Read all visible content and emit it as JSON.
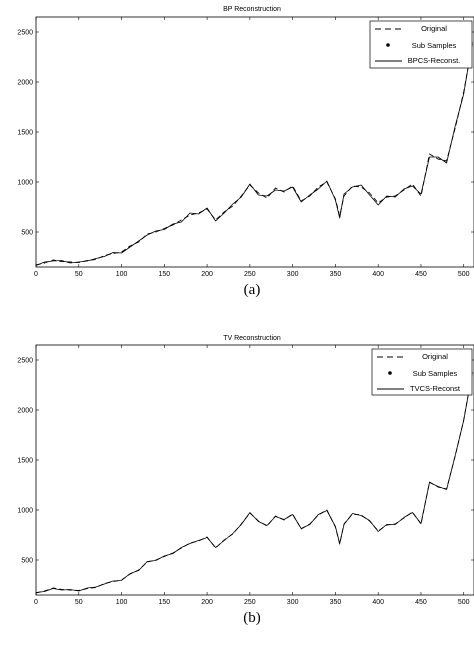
{
  "chart_data": [
    {
      "type": "line",
      "title": "BP Reconstruction",
      "caption": "(a)",
      "xlim": [
        0,
        512
      ],
      "ylim": [
        150,
        2650
      ],
      "xticks": [
        0,
        50,
        100,
        150,
        200,
        250,
        300,
        350,
        400,
        450,
        500
      ],
      "yticks": [
        500,
        1000,
        1500,
        2000,
        2500
      ],
      "legend_position": "top-right",
      "series": [
        {
          "name": "Original",
          "style": "dashed",
          "color": "#000000",
          "x": [
            0,
            10,
            20,
            30,
            40,
            50,
            60,
            70,
            80,
            90,
            100,
            110,
            120,
            130,
            140,
            150,
            160,
            170,
            180,
            190,
            200,
            210,
            220,
            230,
            240,
            250,
            260,
            270,
            280,
            290,
            300,
            310,
            320,
            330,
            340,
            350,
            355,
            360,
            370,
            380,
            390,
            400,
            410,
            420,
            430,
            440,
            450,
            460,
            470,
            480,
            490,
            500,
            510
          ],
          "y": [
            170,
            190,
            220,
            205,
            200,
            195,
            215,
            225,
            265,
            285,
            300,
            360,
            400,
            480,
            500,
            535,
            570,
            620,
            670,
            690,
            730,
            620,
            700,
            760,
            860,
            970,
            890,
            840,
            940,
            900,
            960,
            810,
            860,
            950,
            1000,
            830,
            660,
            860,
            960,
            950,
            890,
            790,
            850,
            860,
            920,
            980,
            860,
            1280,
            1230,
            1210,
            1540,
            1900,
            2380
          ]
        },
        {
          "name": "Sub Samples",
          "style": "dots",
          "color": "#000000",
          "x": [],
          "y": []
        },
        {
          "name": "BPCS-Reconst.",
          "style": "solid",
          "color": "#000000",
          "x": [
            0,
            10,
            20,
            30,
            40,
            50,
            60,
            70,
            80,
            90,
            100,
            110,
            120,
            130,
            140,
            150,
            160,
            170,
            180,
            190,
            200,
            210,
            220,
            230,
            240,
            250,
            260,
            270,
            280,
            290,
            300,
            310,
            320,
            330,
            340,
            350,
            355,
            360,
            370,
            380,
            390,
            400,
            410,
            420,
            430,
            440,
            450,
            460,
            470,
            480,
            490,
            500,
            510
          ],
          "y": [
            165,
            200,
            210,
            215,
            190,
            200,
            210,
            235,
            255,
            295,
            290,
            350,
            410,
            470,
            510,
            525,
            580,
            600,
            690,
            680,
            740,
            610,
            690,
            780,
            850,
            980,
            870,
            860,
            920,
            910,
            950,
            800,
            870,
            930,
            1010,
            820,
            640,
            880,
            950,
            970,
            870,
            770,
            860,
            850,
            930,
            960,
            880,
            1250,
            1250,
            1190,
            1560,
            1880,
            2400
          ]
        }
      ]
    },
    {
      "type": "line",
      "title": "TV Reconstruction",
      "caption": "(b)",
      "xlim": [
        0,
        512
      ],
      "ylim": [
        150,
        2650
      ],
      "xticks": [
        0,
        50,
        100,
        150,
        200,
        250,
        300,
        350,
        400,
        450,
        500
      ],
      "yticks": [
        500,
        1000,
        1500,
        2000,
        2500
      ],
      "legend_position": "top-right",
      "series": [
        {
          "name": "Original",
          "style": "dashed",
          "color": "#000000",
          "x": [
            0,
            10,
            20,
            30,
            40,
            50,
            60,
            70,
            80,
            90,
            100,
            110,
            120,
            130,
            140,
            150,
            160,
            170,
            180,
            190,
            200,
            210,
            220,
            230,
            240,
            250,
            260,
            270,
            280,
            290,
            300,
            310,
            320,
            330,
            340,
            350,
            355,
            360,
            370,
            380,
            390,
            400,
            410,
            420,
            430,
            440,
            450,
            460,
            470,
            480,
            490,
            500,
            510
          ],
          "y": [
            170,
            190,
            220,
            205,
            200,
            195,
            215,
            225,
            265,
            285,
            300,
            360,
            400,
            480,
            500,
            535,
            570,
            620,
            670,
            690,
            730,
            620,
            700,
            760,
            860,
            970,
            890,
            840,
            940,
            900,
            960,
            810,
            860,
            950,
            1000,
            830,
            660,
            860,
            960,
            950,
            890,
            790,
            850,
            860,
            920,
            980,
            860,
            1280,
            1230,
            1210,
            1540,
            1900,
            2380
          ]
        },
        {
          "name": "Sub Samples",
          "style": "dots",
          "color": "#000000",
          "x": [],
          "y": []
        },
        {
          "name": "TVCS-Reconst",
          "style": "solid",
          "color": "#000000",
          "x": [
            0,
            10,
            20,
            30,
            40,
            50,
            60,
            70,
            80,
            90,
            100,
            110,
            120,
            130,
            140,
            150,
            160,
            170,
            180,
            190,
            200,
            210,
            220,
            230,
            240,
            250,
            260,
            270,
            280,
            290,
            300,
            310,
            320,
            330,
            340,
            350,
            355,
            360,
            370,
            380,
            390,
            400,
            410,
            420,
            430,
            440,
            450,
            460,
            470,
            480,
            490,
            500,
            510
          ],
          "y": [
            175,
            185,
            215,
            200,
            205,
            190,
            220,
            230,
            260,
            290,
            295,
            365,
            395,
            485,
            495,
            540,
            565,
            625,
            665,
            695,
            725,
            625,
            695,
            765,
            855,
            975,
            885,
            845,
            935,
            905,
            955,
            815,
            855,
            955,
            995,
            835,
            665,
            855,
            965,
            945,
            895,
            785,
            855,
            855,
            925,
            975,
            865,
            1275,
            1235,
            1205,
            1545,
            1895,
            2375
          ]
        }
      ]
    }
  ]
}
